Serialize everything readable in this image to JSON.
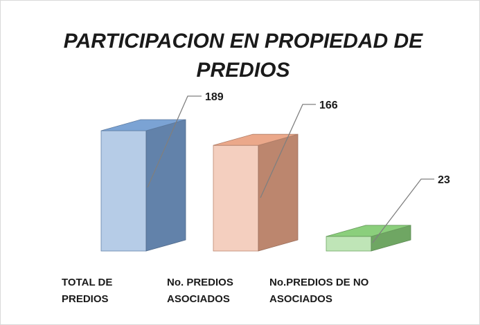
{
  "chart_data": {
    "type": "bar3d",
    "title": "PARTICIPACION EN PROPIEDAD DE PREDIOS",
    "categories": [
      "TOTAL DE PREDIOS",
      "No. PREDIOS ASOCIADOS",
      "No.PREDIOS DE NO ASOCIADOS"
    ],
    "values": [
      189,
      166,
      23
    ],
    "colors": [
      "#7ba3d4",
      "#eba88a",
      "#8bcf7c"
    ]
  }
}
